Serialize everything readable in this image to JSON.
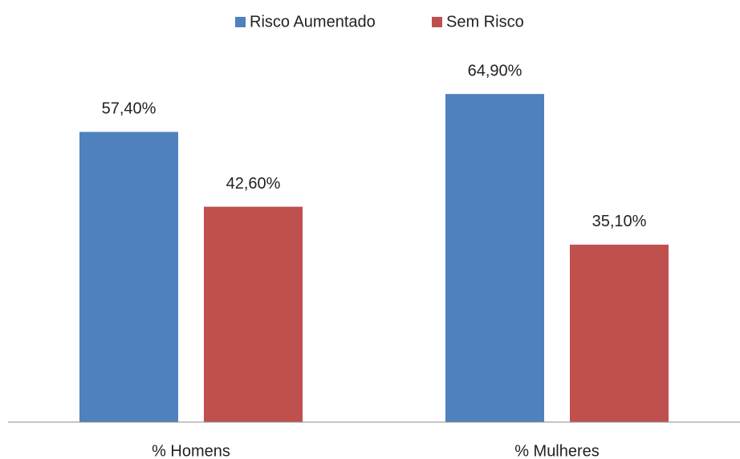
{
  "chart_data": {
    "type": "bar",
    "categories": [
      "% Homens",
      "% Mulheres"
    ],
    "series": [
      {
        "name": "Risco Aumentado",
        "color": "#4f81bd",
        "values": [
          57.4,
          64.9
        ],
        "value_labels": [
          "57,40%",
          "64,90%"
        ]
      },
      {
        "name": "Sem Risco",
        "color": "#c0504d",
        "values": [
          42.6,
          35.1
        ],
        "value_labels": [
          "42,60%",
          "35,10%"
        ]
      }
    ],
    "ylim": [
      0,
      70
    ],
    "legend": "top"
  }
}
